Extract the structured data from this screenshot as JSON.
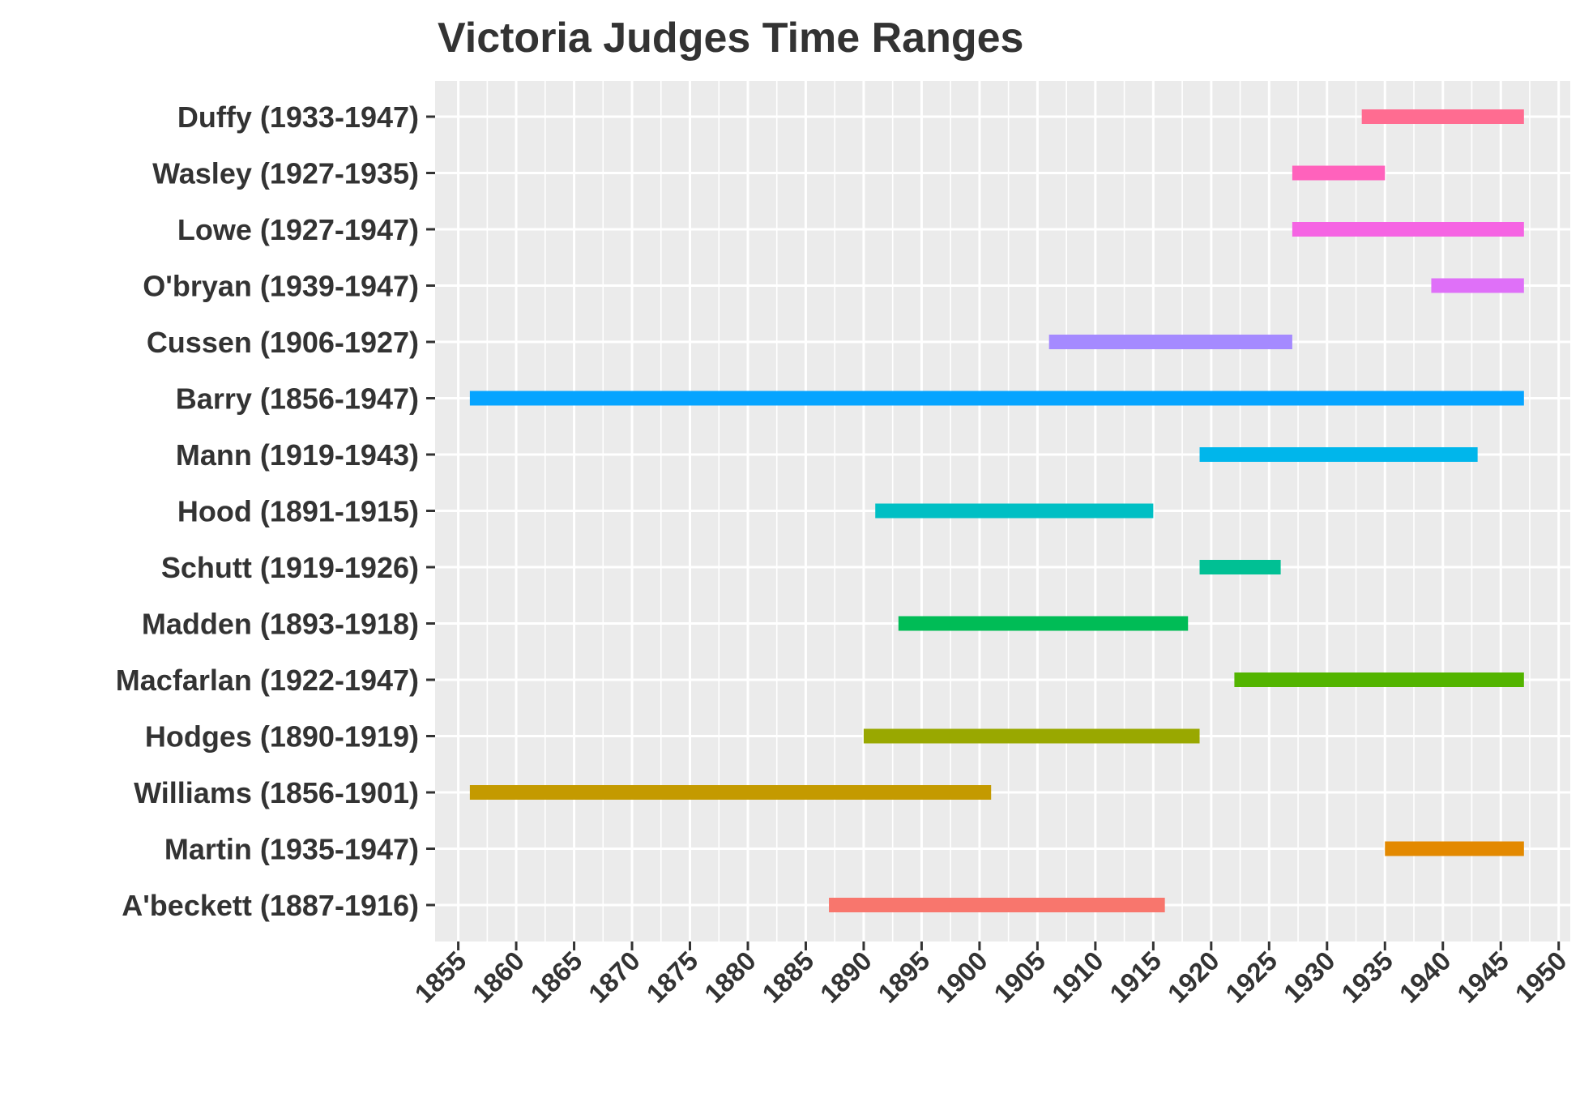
{
  "chart_data": {
    "type": "bar",
    "orientation": "horizontal-range",
    "title": "Victoria Judges Time Ranges",
    "xlabel": "",
    "ylabel": "",
    "xlim": [
      1853,
      1951
    ],
    "xticks": [
      1855,
      1860,
      1865,
      1870,
      1875,
      1880,
      1885,
      1890,
      1895,
      1900,
      1905,
      1910,
      1915,
      1920,
      1925,
      1930,
      1935,
      1940,
      1945,
      1950
    ],
    "grid": true,
    "legend": "none",
    "colors": {
      "panel_background": "#EBEBEB",
      "grid": "#FFFFFF",
      "text": "#333333"
    },
    "items": [
      {
        "label": "A'beckett (1887-1916)",
        "start": 1887,
        "end": 1916,
        "color": "#F8766D"
      },
      {
        "label": "Martin (1935-1947)",
        "start": 1935,
        "end": 1947,
        "color": "#E38900"
      },
      {
        "label": "Williams (1856-1901)",
        "start": 1856,
        "end": 1901,
        "color": "#C49A00"
      },
      {
        "label": "Hodges (1890-1919)",
        "start": 1890,
        "end": 1919,
        "color": "#99A800"
      },
      {
        "label": "Macfarlan (1922-1947)",
        "start": 1922,
        "end": 1947,
        "color": "#53B400"
      },
      {
        "label": "Madden (1893-1918)",
        "start": 1893,
        "end": 1918,
        "color": "#00BC56"
      },
      {
        "label": "Schutt (1919-1926)",
        "start": 1919,
        "end": 1926,
        "color": "#00C094"
      },
      {
        "label": "Hood (1891-1915)",
        "start": 1891,
        "end": 1915,
        "color": "#00BFC4"
      },
      {
        "label": "Mann (1919-1943)",
        "start": 1919,
        "end": 1943,
        "color": "#00B6EB"
      },
      {
        "label": "Barry (1856-1947)",
        "start": 1856,
        "end": 1947,
        "color": "#06A4FF"
      },
      {
        "label": "Cussen (1906-1927)",
        "start": 1906,
        "end": 1927,
        "color": "#A58AFF"
      },
      {
        "label": "O'bryan (1939-1947)",
        "start": 1939,
        "end": 1947,
        "color": "#DF70F8"
      },
      {
        "label": "Lowe (1927-1947)",
        "start": 1927,
        "end": 1947,
        "color": "#F564E3"
      },
      {
        "label": "Wasley (1927-1935)",
        "start": 1927,
        "end": 1935,
        "color": "#FF62BC"
      },
      {
        "label": "Duffy (1933-1947)",
        "start": 1933,
        "end": 1947,
        "color": "#FF6C91"
      }
    ]
  }
}
